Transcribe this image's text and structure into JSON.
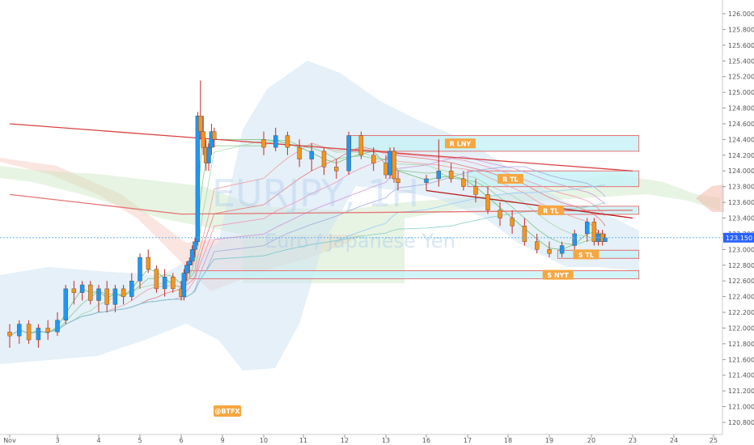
{
  "chart_data": {
    "type": "candlestick",
    "watermark": {
      "symbol": "EURJPY, 1H",
      "name": "Euro / Japanese Yen"
    },
    "price_axis": {
      "min": 120.8,
      "max": 126.0,
      "ticks": [
        "126.000",
        "125.800",
        "125.600",
        "125.400",
        "125.200",
        "125.000",
        "124.800",
        "124.600",
        "124.400",
        "124.200",
        "124.000",
        "123.800",
        "123.600",
        "123.400",
        "123.200",
        "123.000",
        "122.800",
        "122.600",
        "122.400",
        "122.200",
        "122.000",
        "121.800",
        "121.600",
        "121.400",
        "121.200",
        "121.000",
        "120.800"
      ],
      "ticks_num": [
        126.0,
        125.8,
        125.6,
        125.4,
        125.2,
        125.0,
        124.8,
        124.6,
        124.4,
        124.2,
        124.0,
        123.8,
        123.6,
        123.4,
        123.2,
        123.0,
        122.8,
        122.6,
        122.4,
        122.2,
        122.0,
        121.8,
        121.6,
        121.4,
        121.2,
        121.0,
        120.8
      ],
      "current_price": "123.150",
      "current_price_num": 123.15
    },
    "time_axis": {
      "labels": [
        "Nov",
        "3",
        "4",
        "5",
        "6",
        "9",
        "10",
        "11",
        "12",
        "13",
        "16",
        "17",
        "18",
        "19",
        "20",
        "23",
        "24",
        "25"
      ],
      "days": [
        2,
        3,
        4,
        5,
        6,
        9,
        10,
        11,
        12,
        13,
        16,
        17,
        18,
        19,
        20,
        23,
        24,
        25
      ]
    },
    "zones": [
      {
        "label": "R LNY",
        "from_day": 12.15,
        "to_day": 23.15,
        "low": 124.25,
        "high": 124.45,
        "color": "#00bcd4"
      },
      {
        "label": "R TL",
        "from_day": 17.0,
        "to_day": 23.15,
        "low": 123.8,
        "high": 124.0,
        "color": "#00bcd4"
      },
      {
        "label": "R TL",
        "from_day": 18.8,
        "to_day": 23.15,
        "low": 123.5,
        "high": 123.55,
        "color": "#00bcd4"
      },
      {
        "label": "S TL",
        "from_day": 19.2,
        "to_day": 23.15,
        "low": 122.9,
        "high": 122.99,
        "color": "#00bcd4"
      },
      {
        "label": "S NYT",
        "from_day": 6.6,
        "to_day": 23.15,
        "low": 122.65,
        "high": 122.73,
        "color": "#00bcd4"
      }
    ],
    "trendlines": [
      {
        "from": [
          2.0,
          124.6
        ],
        "to": [
          23.0,
          124.0
        ],
        "color": "#d84343"
      },
      {
        "from": [
          2.0,
          123.7
        ],
        "to": [
          6.0,
          123.45
        ],
        "color": "#e57373"
      },
      {
        "from": [
          6.0,
          123.45
        ],
        "to": [
          23.0,
          123.5
        ],
        "color": "#e57373"
      },
      {
        "from": [
          16.0,
          123.75
        ],
        "to": [
          23.0,
          123.4
        ],
        "color": "#b71c1c"
      }
    ],
    "candles": [
      {
        "d": 2.0,
        "o": 121.95,
        "h": 122.05,
        "l": 121.75,
        "c": 121.9
      },
      {
        "d": 2.2,
        "o": 121.9,
        "h": 122.1,
        "l": 121.8,
        "c": 122.05
      },
      {
        "d": 2.4,
        "o": 122.05,
        "h": 122.1,
        "l": 121.8,
        "c": 121.85
      },
      {
        "d": 2.6,
        "o": 121.85,
        "h": 122.05,
        "l": 121.75,
        "c": 122.0
      },
      {
        "d": 2.8,
        "o": 122.0,
        "h": 122.1,
        "l": 121.85,
        "c": 121.95
      },
      {
        "d": 3.0,
        "o": 121.95,
        "h": 122.2,
        "l": 121.9,
        "c": 122.1
      },
      {
        "d": 3.2,
        "o": 122.1,
        "h": 122.55,
        "l": 122.05,
        "c": 122.5
      },
      {
        "d": 3.4,
        "o": 122.5,
        "h": 122.6,
        "l": 122.3,
        "c": 122.45
      },
      {
        "d": 3.6,
        "o": 122.45,
        "h": 122.6,
        "l": 122.35,
        "c": 122.55
      },
      {
        "d": 3.8,
        "o": 122.55,
        "h": 122.6,
        "l": 122.3,
        "c": 122.35
      },
      {
        "d": 4.0,
        "o": 122.35,
        "h": 122.55,
        "l": 122.2,
        "c": 122.5
      },
      {
        "d": 4.2,
        "o": 122.5,
        "h": 122.6,
        "l": 122.2,
        "c": 122.3
      },
      {
        "d": 4.4,
        "o": 122.3,
        "h": 122.55,
        "l": 122.2,
        "c": 122.5
      },
      {
        "d": 4.6,
        "o": 122.5,
        "h": 122.55,
        "l": 122.3,
        "c": 122.4
      },
      {
        "d": 4.8,
        "o": 122.4,
        "h": 122.7,
        "l": 122.35,
        "c": 122.6
      },
      {
        "d": 5.0,
        "o": 122.6,
        "h": 122.95,
        "l": 122.5,
        "c": 122.9
      },
      {
        "d": 5.2,
        "o": 122.9,
        "h": 123.0,
        "l": 122.7,
        "c": 122.75
      },
      {
        "d": 5.4,
        "o": 122.75,
        "h": 122.8,
        "l": 122.45,
        "c": 122.5
      },
      {
        "d": 5.6,
        "o": 122.5,
        "h": 122.75,
        "l": 122.4,
        "c": 122.65
      },
      {
        "d": 5.8,
        "o": 122.65,
        "h": 122.7,
        "l": 122.45,
        "c": 122.5
      },
      {
        "d": 6.0,
        "o": 122.5,
        "h": 122.6,
        "l": 122.35,
        "c": 122.4
      },
      {
        "d": 6.2,
        "o": 122.4,
        "h": 122.75,
        "l": 122.35,
        "c": 122.7
      },
      {
        "d": 6.4,
        "o": 122.7,
        "h": 122.85,
        "l": 122.6,
        "c": 122.8
      },
      {
        "d": 6.6,
        "o": 122.8,
        "h": 122.9,
        "l": 122.7,
        "c": 122.85
      },
      {
        "d": 6.8,
        "o": 122.85,
        "h": 123.05,
        "l": 122.8,
        "c": 123.0
      },
      {
        "d": 7.0,
        "o": 123.0,
        "h": 123.15,
        "l": 122.9,
        "c": 123.1
      },
      {
        "d": 7.2,
        "o": 123.1,
        "h": 124.75,
        "l": 123.05,
        "c": 124.7
      },
      {
        "d": 7.4,
        "o": 124.7,
        "h": 125.15,
        "l": 124.4,
        "c": 124.5
      },
      {
        "d": 7.6,
        "o": 124.5,
        "h": 124.7,
        "l": 124.2,
        "c": 124.3
      },
      {
        "d": 7.8,
        "o": 124.3,
        "h": 124.4,
        "l": 124.0,
        "c": 124.1
      },
      {
        "d": 8.0,
        "o": 124.1,
        "h": 124.35,
        "l": 124.0,
        "c": 124.3
      },
      {
        "d": 8.2,
        "o": 124.3,
        "h": 124.6,
        "l": 124.2,
        "c": 124.5
      },
      {
        "d": 8.4,
        "o": 124.5,
        "h": 124.55,
        "l": 124.3,
        "c": 124.4
      },
      {
        "d": 10.0,
        "o": 124.4,
        "h": 124.5,
        "l": 124.2,
        "c": 124.3
      },
      {
        "d": 10.3,
        "o": 124.3,
        "h": 124.55,
        "l": 124.25,
        "c": 124.45
      },
      {
        "d": 10.6,
        "o": 124.45,
        "h": 124.5,
        "l": 124.2,
        "c": 124.3
      },
      {
        "d": 10.9,
        "o": 124.3,
        "h": 124.4,
        "l": 124.05,
        "c": 124.15
      },
      {
        "d": 11.2,
        "o": 124.15,
        "h": 124.35,
        "l": 124.0,
        "c": 124.25
      },
      {
        "d": 11.5,
        "o": 124.25,
        "h": 124.3,
        "l": 123.95,
        "c": 124.05
      },
      {
        "d": 11.8,
        "o": 124.05,
        "h": 124.15,
        "l": 123.9,
        "c": 124.0
      },
      {
        "d": 12.1,
        "o": 124.0,
        "h": 124.5,
        "l": 123.95,
        "c": 124.45
      },
      {
        "d": 12.4,
        "o": 124.45,
        "h": 124.5,
        "l": 124.15,
        "c": 124.2
      },
      {
        "d": 12.7,
        "o": 124.2,
        "h": 124.3,
        "l": 124.0,
        "c": 124.1
      },
      {
        "d": 13.0,
        "o": 124.1,
        "h": 124.2,
        "l": 123.9,
        "c": 123.95
      },
      {
        "d": 13.3,
        "o": 123.95,
        "h": 124.3,
        "l": 123.9,
        "c": 124.25
      },
      {
        "d": 13.6,
        "o": 124.25,
        "h": 124.3,
        "l": 123.85,
        "c": 123.9
      },
      {
        "d": 13.9,
        "o": 123.9,
        "h": 124.0,
        "l": 123.75,
        "c": 123.85
      },
      {
        "d": 16.0,
        "o": 123.85,
        "h": 123.95,
        "l": 123.75,
        "c": 123.9
      },
      {
        "d": 16.3,
        "o": 123.9,
        "h": 124.4,
        "l": 123.8,
        "c": 124.0
      },
      {
        "d": 16.6,
        "o": 124.0,
        "h": 124.1,
        "l": 123.85,
        "c": 123.9
      },
      {
        "d": 16.9,
        "o": 123.9,
        "h": 124.0,
        "l": 123.75,
        "c": 123.8
      },
      {
        "d": 17.2,
        "o": 123.8,
        "h": 123.9,
        "l": 123.6,
        "c": 123.7
      },
      {
        "d": 17.5,
        "o": 123.7,
        "h": 123.8,
        "l": 123.45,
        "c": 123.5
      },
      {
        "d": 17.8,
        "o": 123.5,
        "h": 123.6,
        "l": 123.3,
        "c": 123.4
      },
      {
        "d": 18.1,
        "o": 123.4,
        "h": 123.5,
        "l": 123.2,
        "c": 123.3
      },
      {
        "d": 18.4,
        "o": 123.3,
        "h": 123.4,
        "l": 123.05,
        "c": 123.1
      },
      {
        "d": 18.7,
        "o": 123.1,
        "h": 123.2,
        "l": 122.95,
        "c": 123.0
      },
      {
        "d": 19.0,
        "o": 123.0,
        "h": 123.1,
        "l": 122.9,
        "c": 122.95
      },
      {
        "d": 19.3,
        "o": 122.95,
        "h": 123.1,
        "l": 122.9,
        "c": 123.05
      },
      {
        "d": 19.6,
        "o": 123.05,
        "h": 123.25,
        "l": 123.0,
        "c": 123.2
      },
      {
        "d": 19.9,
        "o": 123.2,
        "h": 123.4,
        "l": 123.1,
        "c": 123.35
      },
      {
        "d": 20.2,
        "o": 123.35,
        "h": 123.4,
        "l": 123.05,
        "c": 123.1
      },
      {
        "d": 20.5,
        "o": 123.1,
        "h": 123.25,
        "l": 123.05,
        "c": 123.2
      },
      {
        "d": 20.8,
        "o": 123.2,
        "h": 123.25,
        "l": 123.05,
        "c": 123.1
      },
      {
        "d": 21.0,
        "o": 123.1,
        "h": 123.2,
        "l": 123.1,
        "c": 123.15
      }
    ],
    "badge": "@BTFX",
    "colors": {
      "up": "#2196f3",
      "down": "#f7941d",
      "zone_fill": "#c6f1f6",
      "zone_border": "#e57373",
      "label_bg": "#f5a742"
    }
  }
}
